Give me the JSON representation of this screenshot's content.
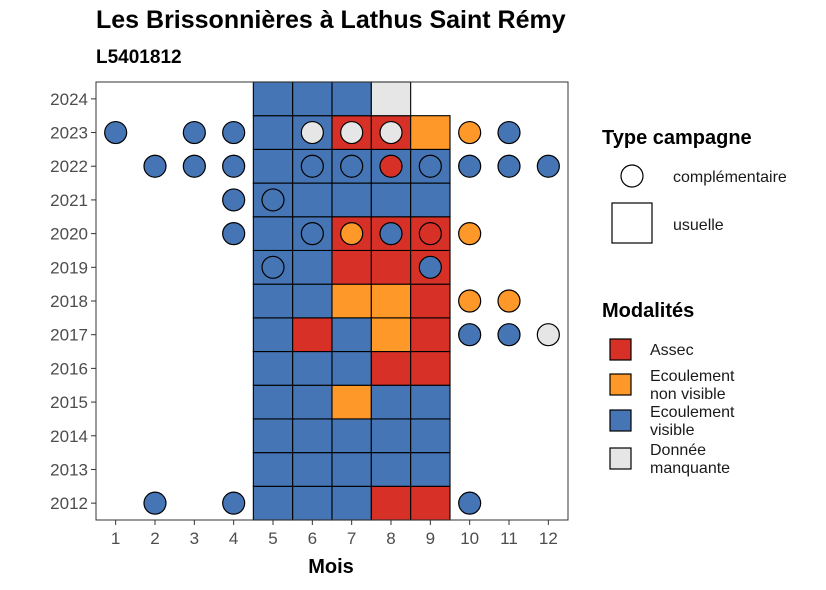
{
  "title": "Les Brissonnières à Lathus Saint Rémy",
  "subtitle": "L5401812",
  "chart_data": {
    "type": "heatmap",
    "xlabel": "Mois",
    "ylabel": "",
    "x_ticks": [
      "1",
      "2",
      "3",
      "4",
      "5",
      "6",
      "7",
      "8",
      "9",
      "10",
      "11",
      "12"
    ],
    "y_ticks": [
      "2012",
      "2013",
      "2014",
      "2015",
      "2016",
      "2017",
      "2018",
      "2019",
      "2020",
      "2021",
      "2022",
      "2023",
      "2024"
    ],
    "xlim": [
      0.5,
      12.5
    ],
    "ylim": [
      2011.5,
      2024.5
    ],
    "colors": {
      "Assec": "#d73027",
      "Ecoulement non visible": "#fe9929",
      "Ecoulement visible": "#4575b4",
      "Donnée manquante": "#e6e6e6"
    },
    "usuelle": [
      {
        "year": 2012,
        "values": [
          "Ecoulement visible",
          "Ecoulement visible",
          "Ecoulement visible",
          "Assec",
          "Assec"
        ]
      },
      {
        "year": 2013,
        "values": [
          "Ecoulement visible",
          "Ecoulement visible",
          "Ecoulement visible",
          "Ecoulement visible",
          "Ecoulement visible"
        ]
      },
      {
        "year": 2014,
        "values": [
          "Ecoulement visible",
          "Ecoulement visible",
          "Ecoulement visible",
          "Ecoulement visible",
          "Ecoulement visible"
        ]
      },
      {
        "year": 2015,
        "values": [
          "Ecoulement visible",
          "Ecoulement visible",
          "Ecoulement non visible",
          "Ecoulement visible",
          "Ecoulement visible"
        ]
      },
      {
        "year": 2016,
        "values": [
          "Ecoulement visible",
          "Ecoulement visible",
          "Ecoulement visible",
          "Assec",
          "Assec"
        ]
      },
      {
        "year": 2017,
        "values": [
          "Ecoulement visible",
          "Assec",
          "Ecoulement visible",
          "Ecoulement non visible",
          "Assec"
        ]
      },
      {
        "year": 2018,
        "values": [
          "Ecoulement visible",
          "Ecoulement visible",
          "Ecoulement non visible",
          "Ecoulement non visible",
          "Assec"
        ]
      },
      {
        "year": 2019,
        "values": [
          "Ecoulement visible",
          "Ecoulement visible",
          "Assec",
          "Assec",
          "Assec"
        ]
      },
      {
        "year": 2020,
        "values": [
          "Ecoulement visible",
          "Ecoulement visible",
          "Assec",
          "Assec",
          "Assec"
        ]
      },
      {
        "year": 2021,
        "values": [
          "Ecoulement visible",
          "Ecoulement visible",
          "Ecoulement visible",
          "Ecoulement visible",
          "Ecoulement visible"
        ]
      },
      {
        "year": 2022,
        "values": [
          "Ecoulement visible",
          "Ecoulement visible",
          "Ecoulement visible",
          "Ecoulement visible",
          "Ecoulement visible"
        ]
      },
      {
        "year": 2023,
        "values": [
          "Ecoulement visible",
          "Ecoulement visible",
          "Assec",
          "Assec",
          "Ecoulement non visible"
        ]
      },
      {
        "year": 2024,
        "values": [
          "Ecoulement visible",
          "Ecoulement visible",
          "Ecoulement visible",
          "Donnée manquante",
          null
        ]
      }
    ],
    "usuelle_months": [
      5,
      6,
      7,
      8,
      9
    ],
    "complementaire": [
      {
        "month": 1,
        "year": 2023,
        "value": "Ecoulement visible"
      },
      {
        "month": 3,
        "year": 2023,
        "value": "Ecoulement visible"
      },
      {
        "month": 4,
        "year": 2023,
        "value": "Ecoulement visible"
      },
      {
        "month": 6,
        "year": 2023,
        "value": "Donnée manquante"
      },
      {
        "month": 7,
        "year": 2023,
        "value": "Donnée manquante"
      },
      {
        "month": 8,
        "year": 2023,
        "value": "Donnée manquante"
      },
      {
        "month": 10,
        "year": 2023,
        "value": "Ecoulement non visible"
      },
      {
        "month": 11,
        "year": 2023,
        "value": "Ecoulement visible"
      },
      {
        "month": 2,
        "year": 2022,
        "value": "Ecoulement visible"
      },
      {
        "month": 3,
        "year": 2022,
        "value": "Ecoulement visible"
      },
      {
        "month": 4,
        "year": 2022,
        "value": "Ecoulement visible"
      },
      {
        "month": 6,
        "year": 2022,
        "value": "Ecoulement visible"
      },
      {
        "month": 7,
        "year": 2022,
        "value": "Ecoulement visible"
      },
      {
        "month": 8,
        "year": 2022,
        "value": "Assec"
      },
      {
        "month": 9,
        "year": 2022,
        "value": "Ecoulement visible"
      },
      {
        "month": 10,
        "year": 2022,
        "value": "Ecoulement visible"
      },
      {
        "month": 11,
        "year": 2022,
        "value": "Ecoulement visible"
      },
      {
        "month": 12,
        "year": 2022,
        "value": "Ecoulement visible"
      },
      {
        "month": 4,
        "year": 2021,
        "value": "Ecoulement visible"
      },
      {
        "month": 5,
        "year": 2021,
        "value": "Ecoulement visible"
      },
      {
        "month": 4,
        "year": 2020,
        "value": "Ecoulement visible"
      },
      {
        "month": 6,
        "year": 2020,
        "value": "Ecoulement visible"
      },
      {
        "month": 7,
        "year": 2020,
        "value": "Ecoulement non visible"
      },
      {
        "month": 8,
        "year": 2020,
        "value": "Ecoulement visible"
      },
      {
        "month": 9,
        "year": 2020,
        "value": "Assec"
      },
      {
        "month": 10,
        "year": 2020,
        "value": "Ecoulement non visible"
      },
      {
        "month": 5,
        "year": 2019,
        "value": "Ecoulement visible"
      },
      {
        "month": 9,
        "year": 2019,
        "value": "Ecoulement visible"
      },
      {
        "month": 10,
        "year": 2018,
        "value": "Ecoulement non visible"
      },
      {
        "month": 11,
        "year": 2018,
        "value": "Ecoulement non visible"
      },
      {
        "month": 10,
        "year": 2017,
        "value": "Ecoulement visible"
      },
      {
        "month": 11,
        "year": 2017,
        "value": "Ecoulement visible"
      },
      {
        "month": 12,
        "year": 2017,
        "value": "Donnée manquante"
      },
      {
        "month": 2,
        "year": 2012,
        "value": "Ecoulement visible"
      },
      {
        "month": 4,
        "year": 2012,
        "value": "Ecoulement visible"
      },
      {
        "month": 10,
        "year": 2012,
        "value": "Ecoulement visible"
      }
    ],
    "legend": {
      "type_title": "Type campagne",
      "type_items": [
        "complémentaire",
        "usuelle"
      ],
      "mod_title": "Modalités",
      "mod_items": [
        {
          "key": "Assec",
          "lines": [
            "Assec"
          ]
        },
        {
          "key": "Ecoulement non visible",
          "lines": [
            "Ecoulement",
            "non visible"
          ]
        },
        {
          "key": "Ecoulement visible",
          "lines": [
            "Ecoulement",
            "visible"
          ]
        },
        {
          "key": "Donnée manquante",
          "lines": [
            "Donnée",
            "manquante"
          ]
        }
      ]
    }
  }
}
